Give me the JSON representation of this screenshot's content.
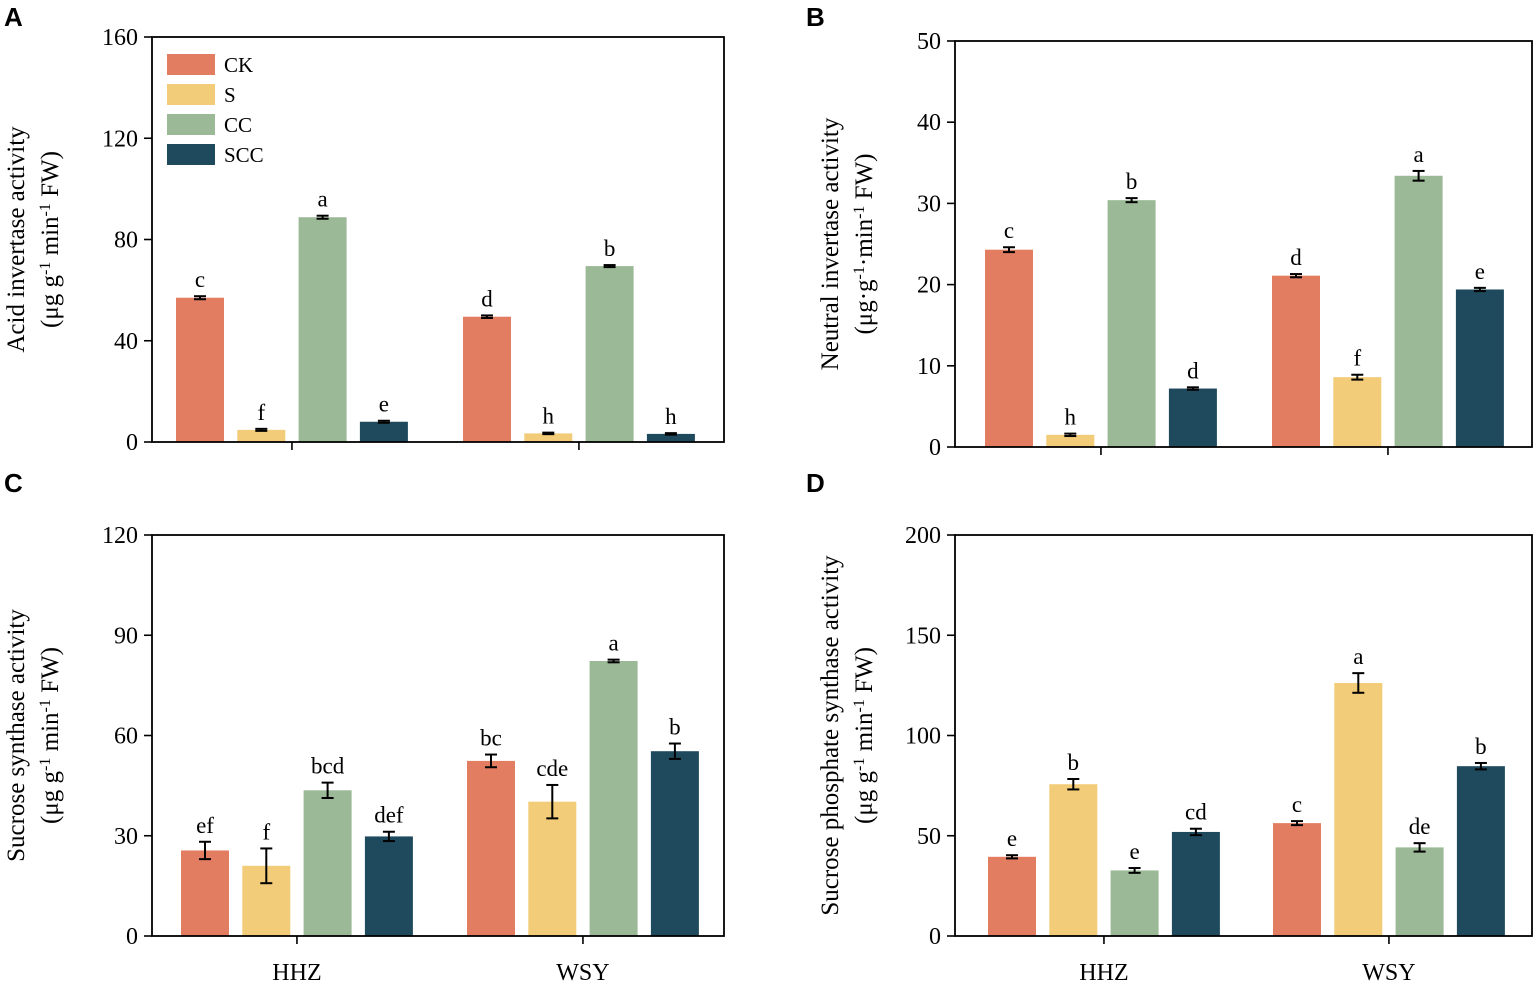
{
  "colors": {
    "CK": "#e37d62",
    "S": "#f2cc78",
    "CC": "#9bb996",
    "SCC": "#1f4a5e"
  },
  "legend": [
    {
      "key": "CK",
      "label": "CK"
    },
    {
      "key": "S",
      "label": "S"
    },
    {
      "key": "CC",
      "label": "CC"
    },
    {
      "key": "SCC",
      "label": "SCC"
    }
  ],
  "chart_data": [
    {
      "panel": "A",
      "type": "bar",
      "categories": [
        "HHZ",
        "WSY"
      ],
      "show_xticklabels": false,
      "ylabel": "Acid invertase activity",
      "ylabel_unit_prefix": "(μg g",
      "ylabel_unit_sup1": "-1",
      "ylabel_unit_mid": " min",
      "ylabel_unit_sup2": "-1",
      "ylabel_unit_suffix": " FW)",
      "ylim": [
        0,
        160
      ],
      "yticks": [
        0,
        40,
        80,
        120,
        160
      ],
      "has_legend": true,
      "series": [
        {
          "name": "CK",
          "values": [
            57,
            49.5
          ],
          "errors": [
            0.6,
            0.5
          ],
          "letters": [
            "c",
            "d"
          ]
        },
        {
          "name": "S",
          "values": [
            4.8,
            3.4
          ],
          "errors": [
            0.4,
            0.3
          ],
          "letters": [
            "f",
            "h"
          ]
        },
        {
          "name": "CC",
          "values": [
            88.8,
            69.5
          ],
          "errors": [
            0.6,
            0.4
          ],
          "letters": [
            "a",
            "b"
          ]
        },
        {
          "name": "SCC",
          "values": [
            8,
            3.2
          ],
          "errors": [
            0.4,
            0.3
          ],
          "letters": [
            "e",
            "h"
          ]
        }
      ]
    },
    {
      "panel": "B",
      "type": "bar",
      "categories": [
        "HHZ",
        "WSY"
      ],
      "show_xticklabels": false,
      "ylabel": "Neutral invertase activity",
      "ylabel_unit_prefix": "(μg·g",
      "ylabel_unit_sup1": "-1",
      "ylabel_unit_mid": "·min",
      "ylabel_unit_sup2": "-1",
      "ylabel_unit_suffix": " FW)",
      "ylim": [
        0,
        50
      ],
      "yticks": [
        0,
        10,
        20,
        30,
        40,
        50
      ],
      "has_legend": false,
      "series": [
        {
          "name": "CK",
          "values": [
            24.3,
            21.1
          ],
          "errors": [
            0.3,
            0.2
          ],
          "letters": [
            "c",
            "d"
          ]
        },
        {
          "name": "S",
          "values": [
            1.5,
            8.6
          ],
          "errors": [
            0.15,
            0.3
          ],
          "letters": [
            "h",
            "f"
          ]
        },
        {
          "name": "CC",
          "values": [
            30.4,
            33.4
          ],
          "errors": [
            0.25,
            0.6
          ],
          "letters": [
            "b",
            "a"
          ]
        },
        {
          "name": "SCC",
          "values": [
            7.2,
            19.4
          ],
          "errors": [
            0.15,
            0.2
          ],
          "letters": [
            "d",
            "e"
          ]
        }
      ]
    },
    {
      "panel": "C",
      "type": "bar",
      "categories": [
        "HHZ",
        "WSY"
      ],
      "show_xticklabels": true,
      "ylabel": "Sucrose synthase activity",
      "ylabel_unit_prefix": "(μg g",
      "ylabel_unit_sup1": "-1",
      "ylabel_unit_mid": " min",
      "ylabel_unit_sup2": "-1",
      "ylabel_unit_suffix": " FW)",
      "ylim": [
        0,
        120
      ],
      "yticks": [
        0,
        30,
        60,
        90,
        120
      ],
      "has_legend": false,
      "series": [
        {
          "name": "CK",
          "values": [
            25.6,
            52.4
          ],
          "errors": [
            2.6,
            1.9
          ],
          "letters": [
            "ef",
            "bc"
          ]
        },
        {
          "name": "S",
          "values": [
            21,
            40.2
          ],
          "errors": [
            5.2,
            5
          ],
          "letters": [
            "f",
            "cde"
          ]
        },
        {
          "name": "CC",
          "values": [
            43.6,
            82.3
          ],
          "errors": [
            2.3,
            0.4
          ],
          "letters": [
            "bcd",
            "a"
          ]
        },
        {
          "name": "SCC",
          "values": [
            29.8,
            55.3
          ],
          "errors": [
            1.4,
            2.3
          ],
          "letters": [
            "def",
            "b"
          ]
        }
      ]
    },
    {
      "panel": "D",
      "type": "bar",
      "categories": [
        "HHZ",
        "WSY"
      ],
      "show_xticklabels": true,
      "ylabel": "Sucrose phosphate synthase activity",
      "ylabel_unit_prefix": "(μg g",
      "ylabel_unit_sup1": "-1",
      "ylabel_unit_mid": " min",
      "ylabel_unit_sup2": "-1",
      "ylabel_unit_suffix": " FW)",
      "ylim": [
        0,
        200
      ],
      "yticks": [
        0,
        50,
        100,
        150,
        200
      ],
      "has_legend": false,
      "series": [
        {
          "name": "CK",
          "values": [
            39.5,
            56.3
          ],
          "errors": [
            0.8,
            1
          ],
          "letters": [
            "e",
            "c"
          ]
        },
        {
          "name": "S",
          "values": [
            75.7,
            126.2
          ],
          "errors": [
            2.6,
            4.9
          ],
          "letters": [
            "b",
            "a"
          ]
        },
        {
          "name": "CC",
          "values": [
            32.7,
            44.2
          ],
          "errors": [
            1.2,
            2.1
          ],
          "letters": [
            "e",
            "de"
          ]
        },
        {
          "name": "SCC",
          "values": [
            51.9,
            84.7
          ],
          "errors": [
            1.6,
            1.6
          ],
          "letters": [
            "cd",
            "b"
          ]
        }
      ]
    }
  ]
}
